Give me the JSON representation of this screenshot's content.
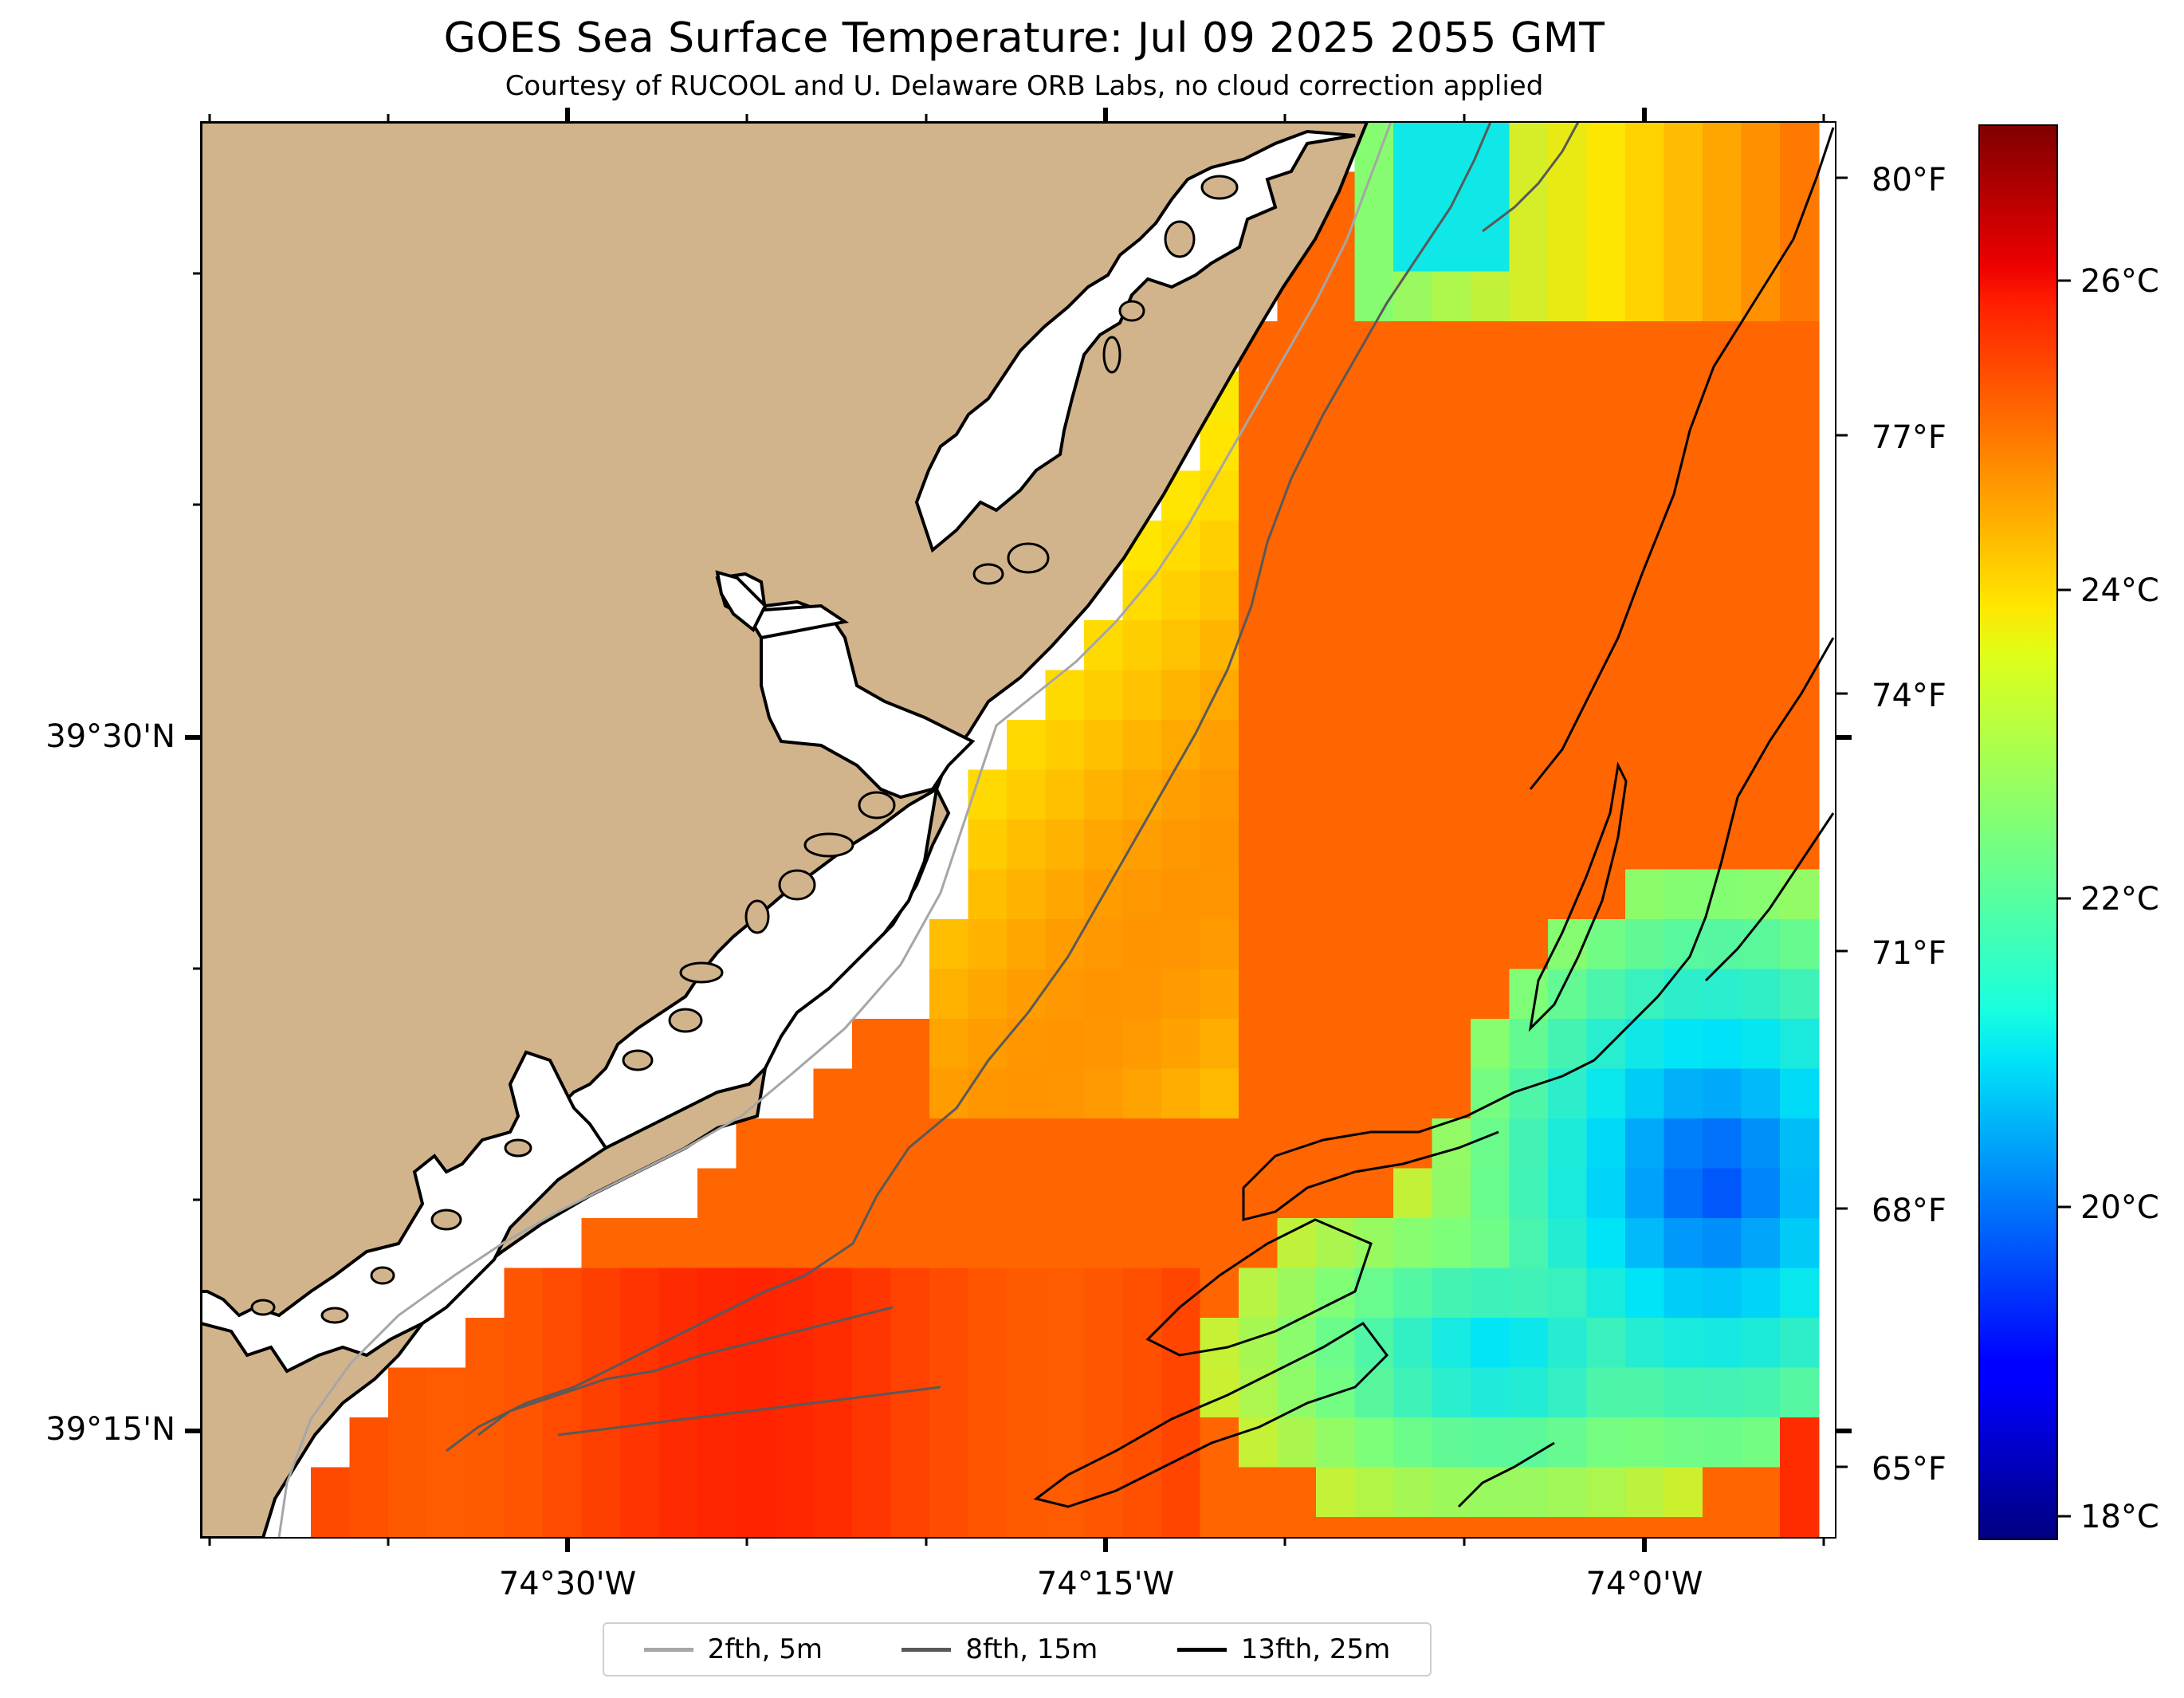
{
  "title": "GOES Sea Surface Temperature: Jul 09 2025 2055 GMT",
  "subtitle": "Courtesy of RUCOOL and U. Delaware ORB Labs, no cloud correction applied",
  "axes": {
    "longitude_ticks": [
      "74°30'W",
      "74°15'W",
      "74°0'W"
    ],
    "latitude_ticks": [
      "39°30'N",
      "39°15'N"
    ]
  },
  "colorbar": {
    "colormap": "jet",
    "celsius_ticks": [
      "26°C",
      "24°C",
      "22°C",
      "20°C",
      "18°C"
    ],
    "fahrenheit_ticks": [
      "80°F",
      "77°F",
      "74°F",
      "71°F",
      "68°F",
      "65°F"
    ],
    "range_c": [
      17.7,
      27.0
    ]
  },
  "legend": [
    {
      "label": "2fth, 5m",
      "color": "#a6a6a6"
    },
    {
      "label": "8fth, 15m",
      "color": "#595959"
    },
    {
      "label": "13fth, 25m",
      "color": "#000000"
    }
  ],
  "colors": {
    "land": "#d2b48c",
    "coastline": "#000000",
    "background": "#ffffff"
  }
}
